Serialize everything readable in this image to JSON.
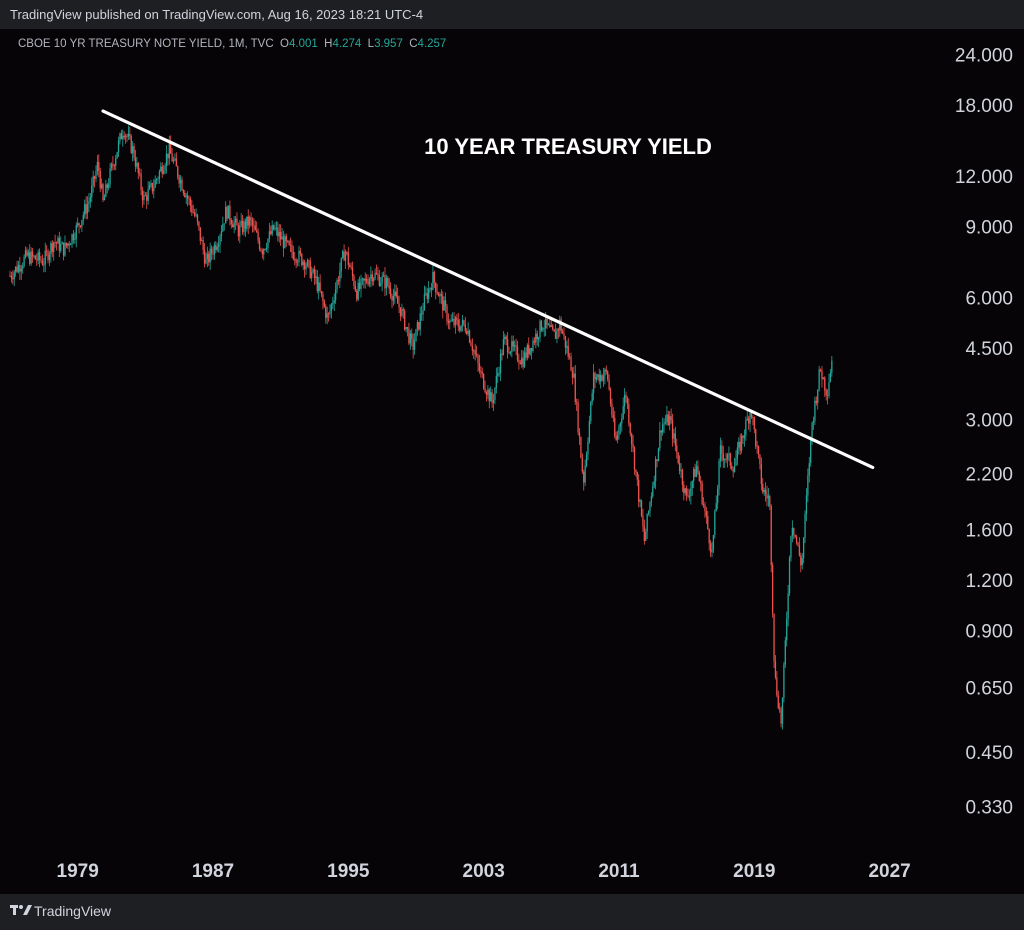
{
  "header": {
    "published_text": "TradingView published on TradingView.com, Aug 16, 2023 18:21 UTC-4"
  },
  "legend": {
    "symbol_text": "CBOE 10 YR TREASURY NOTE YIELD, 1M, TVC",
    "open_label": "O",
    "open_value": "4.001",
    "high_label": "H",
    "high_value": "4.274",
    "low_label": "L",
    "low_value": "3.957",
    "close_label": "C",
    "close_value": "4.257"
  },
  "footer": {
    "brand": "TradingView"
  },
  "colors": {
    "up": "#26a69a",
    "down": "#ef5350",
    "trendline": "#ffffff",
    "axis_text": "#d1d4dc",
    "background": "#060406"
  },
  "chart_data": {
    "type": "candlestick",
    "title": "10 YEAR TREASURY YIELD",
    "interval": "1M",
    "y_scale": "log",
    "ylim": [
      0.29,
      27
    ],
    "xlim": [
      1975.0,
      2028.5
    ],
    "y_ticks": [
      "24.000",
      "18.000",
      "12.000",
      "9.000",
      "6.000",
      "4.500",
      "3.000",
      "2.200",
      "1.600",
      "1.200",
      "0.900",
      "0.650",
      "0.450",
      "0.330"
    ],
    "x_ticks": [
      "1979",
      "1987",
      "1995",
      "2003",
      "2011",
      "2019",
      "2027"
    ],
    "grid": false,
    "trendline": [
      {
        "x": 1980.5,
        "y": 17.4
      },
      {
        "x": 2026.0,
        "y": 2.28
      }
    ],
    "series": [
      {
        "name": "close",
        "points": [
          [
            1975.0,
            6.8
          ],
          [
            1976.0,
            7.6
          ],
          [
            1977.0,
            7.4
          ],
          [
            1977.6,
            8.3
          ],
          [
            1978.2,
            7.9
          ],
          [
            1979.0,
            9.0
          ],
          [
            1979.7,
            10.5
          ],
          [
            1980.2,
            12.9
          ],
          [
            1980.5,
            10.3
          ],
          [
            1981.0,
            12.5
          ],
          [
            1981.7,
            15.8
          ],
          [
            1982.3,
            13.8
          ],
          [
            1982.9,
            10.5
          ],
          [
            1983.5,
            11.4
          ],
          [
            1984.4,
            13.9
          ],
          [
            1985.2,
            11.4
          ],
          [
            1986.0,
            9.4
          ],
          [
            1986.6,
            7.3
          ],
          [
            1987.3,
            8.4
          ],
          [
            1987.8,
            9.9
          ],
          [
            1988.5,
            8.8
          ],
          [
            1989.2,
            9.3
          ],
          [
            1989.9,
            7.9
          ],
          [
            1990.6,
            8.9
          ],
          [
            1991.5,
            7.9
          ],
          [
            1992.4,
            7.4
          ],
          [
            1993.1,
            6.6
          ],
          [
            1993.8,
            5.3
          ],
          [
            1994.8,
            7.9
          ],
          [
            1995.5,
            6.2
          ],
          [
            1996.4,
            6.9
          ],
          [
            1997.3,
            6.5
          ],
          [
            1998.1,
            5.6
          ],
          [
            1998.8,
            4.5
          ],
          [
            1999.5,
            5.9
          ],
          [
            2000.0,
            6.7
          ],
          [
            2001.0,
            5.2
          ],
          [
            2002.0,
            5.1
          ],
          [
            2002.8,
            3.9
          ],
          [
            2003.5,
            3.3
          ],
          [
            2004.2,
            4.7
          ],
          [
            2005.3,
            4.2
          ],
          [
            2006.5,
            5.2
          ],
          [
            2007.2,
            4.8
          ],
          [
            2007.5,
            5.2
          ],
          [
            2008.3,
            3.9
          ],
          [
            2008.9,
            2.1
          ],
          [
            2009.5,
            3.8
          ],
          [
            2010.3,
            3.9
          ],
          [
            2010.8,
            2.6
          ],
          [
            2011.4,
            3.5
          ],
          [
            2012.5,
            1.5
          ],
          [
            2013.5,
            2.9
          ],
          [
            2014.0,
            3.0
          ],
          [
            2015.0,
            1.9
          ],
          [
            2015.6,
            2.3
          ],
          [
            2016.5,
            1.4
          ],
          [
            2017.0,
            2.5
          ],
          [
            2017.8,
            2.3
          ],
          [
            2018.8,
            3.2
          ],
          [
            2019.5,
            2.0
          ],
          [
            2019.9,
            1.9
          ],
          [
            2020.2,
            0.7
          ],
          [
            2020.6,
            0.53
          ],
          [
            2021.2,
            1.7
          ],
          [
            2021.8,
            1.3
          ],
          [
            2022.4,
            2.9
          ],
          [
            2022.9,
            4.0
          ],
          [
            2023.3,
            3.5
          ],
          [
            2023.6,
            4.26
          ]
        ]
      }
    ]
  }
}
